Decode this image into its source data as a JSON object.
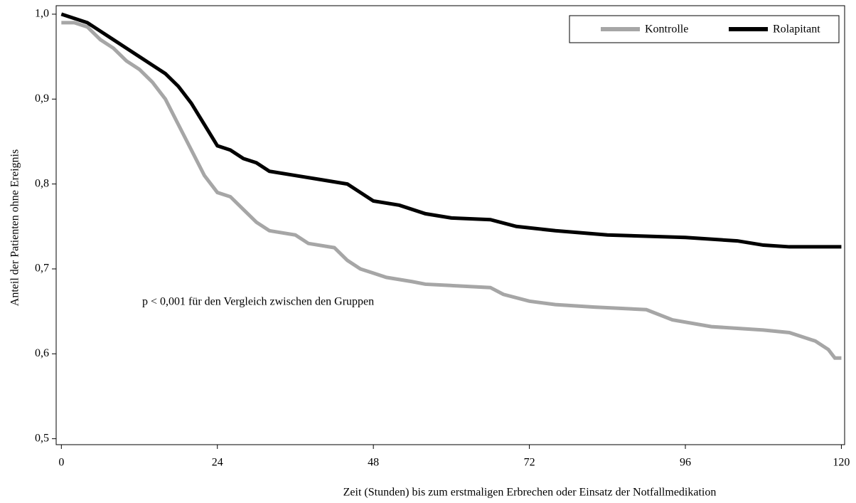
{
  "chart_data": {
    "type": "line",
    "xlabel": "Zeit (Stunden) bis zum erstmaligen Erbrechen oder Einsatz der Notfallmedikation",
    "ylabel": "Anteil der Patienten ohne Ereignis",
    "annotation": "p < 0,001 für den Vergleich zwischen den Gruppen",
    "xlim": [
      -0.8,
      120.5
    ],
    "ylim": [
      0.493,
      1.01
    ],
    "xticks": [
      0,
      24,
      48,
      72,
      96,
      120
    ],
    "yticks": [
      {
        "value": 0.5,
        "label": "0,5"
      },
      {
        "value": 0.6,
        "label": "0,6"
      },
      {
        "value": 0.7,
        "label": "0,7"
      },
      {
        "value": 0.8,
        "label": "0,8"
      },
      {
        "value": 0.9,
        "label": "0,9"
      },
      {
        "value": 1.0,
        "label": "1,0"
      }
    ],
    "legend": "upper right",
    "series": [
      {
        "name": "Kontrolle",
        "color": "#a6a6a6",
        "x": [
          0,
          2,
          4,
          6,
          8,
          10,
          12,
          14,
          16,
          18,
          20,
          22,
          24,
          26,
          28,
          30,
          32,
          36,
          38,
          42,
          44,
          46,
          48,
          50,
          54,
          56,
          66,
          68,
          72,
          76,
          82,
          90,
          94,
          100,
          108,
          112,
          116,
          118,
          119,
          120
        ],
        "values": [
          0.99,
          0.99,
          0.985,
          0.97,
          0.96,
          0.945,
          0.935,
          0.92,
          0.9,
          0.87,
          0.84,
          0.81,
          0.79,
          0.785,
          0.77,
          0.755,
          0.745,
          0.74,
          0.73,
          0.725,
          0.71,
          0.7,
          0.695,
          0.69,
          0.685,
          0.682,
          0.678,
          0.67,
          0.662,
          0.658,
          0.655,
          0.652,
          0.64,
          0.632,
          0.628,
          0.625,
          0.615,
          0.605,
          0.595,
          0.595
        ]
      },
      {
        "name": "Rolapitant",
        "color": "#000000",
        "x": [
          0,
          2,
          4,
          6,
          8,
          10,
          12,
          14,
          16,
          18,
          20,
          22,
          24,
          26,
          28,
          30,
          32,
          36,
          40,
          44,
          46,
          48,
          52,
          56,
          60,
          66,
          70,
          76,
          84,
          96,
          104,
          108,
          112,
          120
        ],
        "values": [
          1.0,
          0.995,
          0.99,
          0.98,
          0.97,
          0.96,
          0.95,
          0.94,
          0.93,
          0.915,
          0.895,
          0.87,
          0.845,
          0.84,
          0.83,
          0.825,
          0.815,
          0.81,
          0.805,
          0.8,
          0.79,
          0.78,
          0.775,
          0.765,
          0.76,
          0.758,
          0.75,
          0.745,
          0.74,
          0.737,
          0.733,
          0.728,
          0.726,
          0.726
        ]
      }
    ]
  }
}
